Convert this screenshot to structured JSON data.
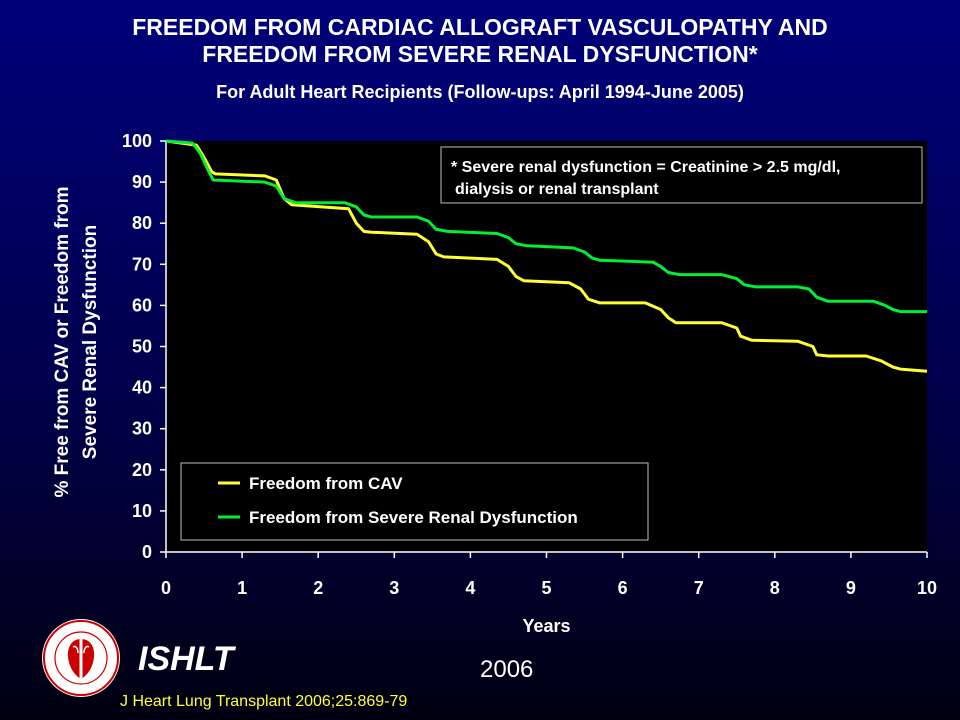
{
  "header": {
    "title_line1": "FREEDOM FROM CARDIAC ALLOGRAFT VASCULOPATHY AND",
    "title_line2": "FREEDOM FROM SEVERE RENAL DYSFUNCTION*",
    "subtitle": "For Adult Heart Recipients (Follow-ups: April 1994-June 2005)"
  },
  "footer": {
    "brand": "ISHLT",
    "year": "2006",
    "citation": "J Heart Lung Transplant 2006;25:869-79",
    "logo_icon": "ishlt-logo-icon"
  },
  "colors": {
    "background": "#00005a",
    "plot_bg": "#000000",
    "cav": "#ffff33",
    "renal": "#00ee33",
    "text": "#ffffff",
    "citation": "#ffff33"
  },
  "chart_data": {
    "type": "line",
    "title": "",
    "xlabel": "Years",
    "ylabel_line1": "% Free from CAV or Freedom from",
    "ylabel_line2": "Severe Renal Dysfunction",
    "xlim": [
      0,
      10
    ],
    "ylim": [
      0,
      100
    ],
    "xticks": [
      "0",
      "1",
      "2",
      "3",
      "4",
      "5",
      "6",
      "7",
      "8",
      "9",
      "10"
    ],
    "yticks": [
      "0",
      "10",
      "20",
      "30",
      "40",
      "50",
      "60",
      "70",
      "80",
      "90",
      "100"
    ],
    "grid": false,
    "legend_position": "bottom-left",
    "note_line1": "* Severe renal dysfunction = Creatinine > 2.5 mg/dl,",
    "note_line2": "dialysis or renal transplant",
    "series": [
      {
        "name": "Freedom from CAV",
        "color": "#ffff33",
        "x": [
          0,
          0.4,
          0.5,
          0.6,
          0.65,
          1.3,
          1.45,
          1.55,
          1.65,
          2.4,
          2.5,
          2.6,
          2.7,
          3.3,
          3.45,
          3.55,
          3.65,
          4.35,
          4.5,
          4.6,
          4.7,
          5.3,
          5.45,
          5.55,
          5.7,
          6.3,
          6.5,
          6.6,
          6.7,
          7.3,
          7.5,
          7.55,
          7.7,
          8.3,
          8.5,
          8.55,
          8.7,
          9.2,
          9.4,
          9.55,
          9.65,
          10.0
        ],
        "y": [
          100,
          99,
          96,
          92.5,
          92,
          91.5,
          90.5,
          86,
          84.5,
          83.5,
          80,
          78,
          77.8,
          77.3,
          75.5,
          72.5,
          71.8,
          71.2,
          69.5,
          67,
          66,
          65.5,
          64,
          61.5,
          60.6,
          60.6,
          59,
          57,
          55.8,
          55.8,
          54.5,
          52.5,
          51.5,
          51.3,
          50,
          48,
          47.7,
          47.7,
          46.5,
          45,
          44.5,
          44
        ]
      },
      {
        "name": "Freedom from Severe Renal Dysfunction",
        "color": "#00ee33",
        "x": [
          0,
          0.35,
          0.45,
          0.55,
          0.62,
          1.3,
          1.45,
          1.55,
          1.7,
          2.35,
          2.5,
          2.6,
          2.7,
          3.3,
          3.45,
          3.55,
          3.7,
          4.35,
          4.5,
          4.6,
          4.75,
          5.35,
          5.5,
          5.6,
          5.7,
          6.4,
          6.5,
          6.6,
          6.75,
          7.3,
          7.5,
          7.6,
          7.75,
          8.3,
          8.45,
          8.55,
          8.7,
          9.3,
          9.45,
          9.55,
          9.65,
          10.0
        ],
        "y": [
          100,
          99.5,
          97,
          93,
          90.5,
          90,
          89,
          86,
          85,
          85,
          84,
          82,
          81.5,
          81.5,
          80.5,
          78.5,
          78,
          77.5,
          76.5,
          75,
          74.5,
          74,
          73,
          71.5,
          71,
          70.5,
          69.5,
          68,
          67.5,
          67.5,
          66.5,
          65,
          64.5,
          64.5,
          64,
          62,
          61,
          61,
          60,
          59,
          58.5,
          58.5
        ]
      }
    ]
  }
}
